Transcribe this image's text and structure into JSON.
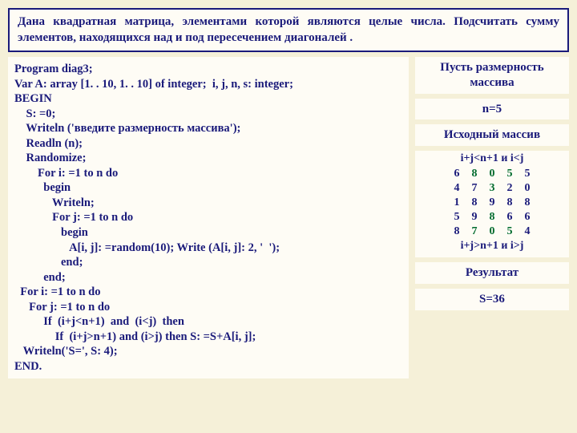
{
  "problem": {
    "text": "Дана квадратная матрица, элементами которой являются целые числа. Подсчитать сумму элементов, находящихся над и под пересечением диагоналей ."
  },
  "code": {
    "text": "Program diag3;\nVar A: array [1. . 10, 1. . 10] of integer;  i, j, n, s: integer;\nBEGIN\n    S: =0;\n    Writeln ('введите размерность массива');\n    Readln (n);\n    Randomize;\n        For i: =1 to n do\n          begin\n             Writeln;\n             For j: =1 to n do\n                begin\n                   A[i, j]: =random(10); Write (A[i, j]: 2, '  ');\n                end;\n          end;\n  For i: =1 to n do\n     For j: =1 to n do\n          If  (i+j<n+1)  and  (i<j)  then\n              If  (i+j>n+1) and (i>j) then S: =S+A[i, j];\n   Writeln('S=', S: 4);\nEND."
  },
  "right": {
    "dim_label": "Пусть размерность массива",
    "n_label": "n=5",
    "src_label": "Исходный массив",
    "cond_top": "i+j<n+1 и i<j",
    "cond_bottom": "i+j>n+1 и i>j",
    "result_label": "Результат",
    "result_value": "S=36"
  },
  "matrix": {
    "cells": [
      {
        "v": "6",
        "sel": false
      },
      {
        "v": "8",
        "sel": true
      },
      {
        "v": "0",
        "sel": true
      },
      {
        "v": "5",
        "sel": true
      },
      {
        "v": "5",
        "sel": false
      },
      {
        "v": "4",
        "sel": false
      },
      {
        "v": "7",
        "sel": false
      },
      {
        "v": "3",
        "sel": true
      },
      {
        "v": "2",
        "sel": false
      },
      {
        "v": "0",
        "sel": false
      },
      {
        "v": "1",
        "sel": false
      },
      {
        "v": "8",
        "sel": false
      },
      {
        "v": "9",
        "sel": false
      },
      {
        "v": "8",
        "sel": false
      },
      {
        "v": "8",
        "sel": false
      },
      {
        "v": "5",
        "sel": false
      },
      {
        "v": "9",
        "sel": false
      },
      {
        "v": "8",
        "sel": true
      },
      {
        "v": "6",
        "sel": false
      },
      {
        "v": "6",
        "sel": false
      },
      {
        "v": "8",
        "sel": false
      },
      {
        "v": "7",
        "sel": true
      },
      {
        "v": "0",
        "sel": true
      },
      {
        "v": "5",
        "sel": true
      },
      {
        "v": "4",
        "sel": false
      }
    ],
    "colors": {
      "normal": "#1a1a7a",
      "highlight": "#006b2e"
    }
  }
}
